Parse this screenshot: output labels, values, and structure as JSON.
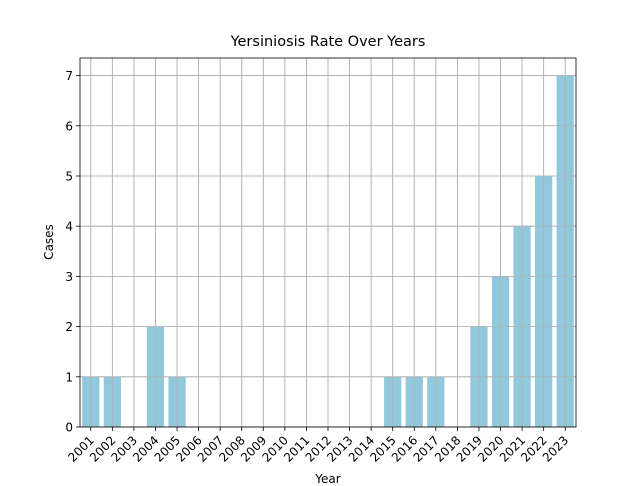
{
  "chart_data": {
    "type": "bar",
    "title": "Yersiniosis Rate Over Years",
    "xlabel": "Year",
    "ylabel": "Cases",
    "categories": [
      "2001",
      "2002",
      "2003",
      "2004",
      "2005",
      "2006",
      "2007",
      "2008",
      "2009",
      "2010",
      "2011",
      "2012",
      "2013",
      "2014",
      "2015",
      "2016",
      "2017",
      "2018",
      "2019",
      "2020",
      "2021",
      "2022",
      "2023"
    ],
    "values": [
      1,
      1,
      0,
      2,
      1,
      0,
      0,
      0,
      0,
      0,
      0,
      0,
      0,
      0,
      1,
      1,
      1,
      0,
      2,
      3,
      4,
      5,
      7
    ],
    "ylim": [
      0,
      7.35
    ],
    "yticks": [
      0,
      1,
      2,
      3,
      4,
      5,
      6,
      7
    ],
    "grid": true,
    "bar_color": "#92c8dc",
    "grid_color": "#b0b0b0"
  }
}
